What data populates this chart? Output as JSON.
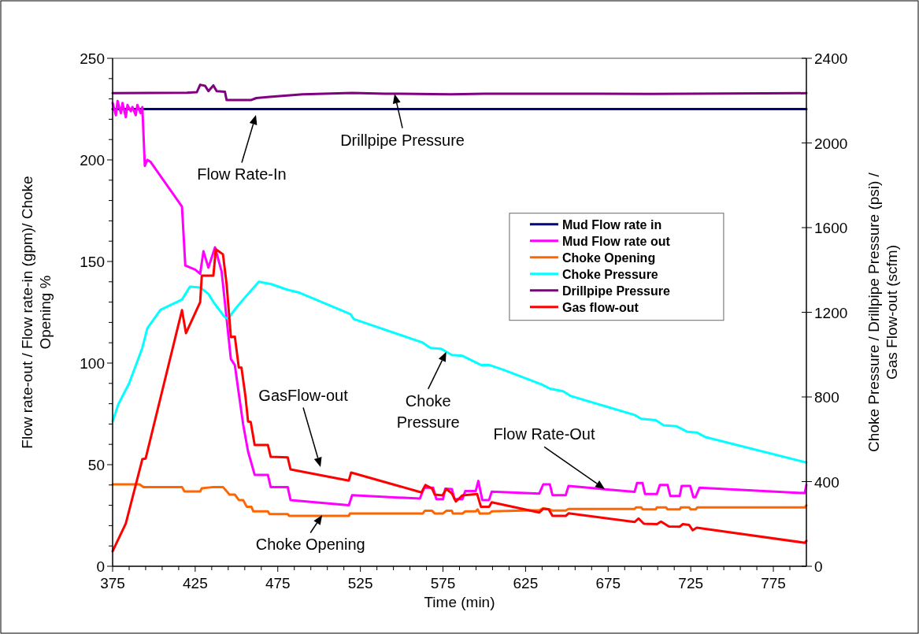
{
  "chart_data": {
    "type": "line",
    "xlabel": "Time (min)",
    "ylabel": "Flow rate-out / Flow rate-in (gpm)/ Choke Opening %",
    "y2label": "Choke Pressure / Drillpipe Pressure (psi) / Gas Flow-out (scfm)",
    "xlim": [
      375,
      795
    ],
    "xticks": [
      375,
      {
        "value": 385,
        "label": null
      },
      {
        "value": 395,
        "label": null
      },
      {
        "value": 405,
        "label": null
      },
      {
        "value": 415,
        "label": null
      },
      425,
      {
        "value": 435,
        "label": null
      },
      {
        "value": 445,
        "label": null
      },
      {
        "value": 455,
        "label": null
      },
      {
        "value": 465,
        "label": null
      },
      475,
      {
        "value": 485,
        "label": null
      },
      {
        "value": 495,
        "label": null
      },
      {
        "value": 505,
        "label": null
      },
      {
        "value": 515,
        "label": null
      },
      525,
      {
        "value": 535,
        "label": null
      },
      {
        "value": 545,
        "label": null
      },
      {
        "value": 555,
        "label": null
      },
      {
        "value": 565,
        "label": null
      },
      575,
      {
        "value": 585,
        "label": null
      },
      {
        "value": 595,
        "label": null
      },
      {
        "value": 605,
        "label": null
      },
      {
        "value": 615,
        "label": null
      },
      625,
      {
        "value": 635,
        "label": null
      },
      {
        "value": 645,
        "label": null
      },
      {
        "value": 655,
        "label": null
      },
      {
        "value": 665,
        "label": null
      },
      675,
      {
        "value": 685,
        "label": null
      },
      {
        "value": 695,
        "label": null
      },
      {
        "value": 705,
        "label": null
      },
      {
        "value": 715,
        "label": null
      },
      725,
      {
        "value": 735,
        "label": null
      },
      {
        "value": 745,
        "label": null
      },
      {
        "value": 755,
        "label": null
      },
      {
        "value": 765,
        "label": null
      },
      775,
      {
        "value": 785,
        "label": null
      }
    ],
    "ylim": [
      0,
      250
    ],
    "yticks": [
      0,
      {
        "value": 10,
        "label": null
      },
      {
        "value": 20,
        "label": null
      },
      {
        "value": 30,
        "label": null
      },
      {
        "value": 40,
        "label": null
      },
      50,
      {
        "value": 60,
        "label": null
      },
      {
        "value": 70,
        "label": null
      },
      {
        "value": 80,
        "label": null
      },
      {
        "value": 90,
        "label": null
      },
      100,
      {
        "value": 110,
        "label": null
      },
      {
        "value": 120,
        "label": null
      },
      {
        "value": 130,
        "label": null
      },
      {
        "value": 140,
        "label": null
      },
      150,
      {
        "value": 160,
        "label": null
      },
      {
        "value": 170,
        "label": null
      },
      {
        "value": 180,
        "label": null
      },
      {
        "value": 190,
        "label": null
      },
      200,
      {
        "value": 210,
        "label": null
      },
      {
        "value": 220,
        "label": null
      },
      {
        "value": 230,
        "label": null
      },
      {
        "value": 240,
        "label": null
      },
      250
    ],
    "y2lim": [
      0,
      2400
    ],
    "y2ticks": [
      0,
      400,
      800,
      1200,
      1600,
      2000,
      2400
    ],
    "grid": false,
    "legend": "right",
    "marker": "none",
    "line_style": "solid",
    "series": [
      {
        "name": "Mud Flow rate in",
        "color": "#000080",
        "x": [
          375,
          795
        ],
        "values": [
          225,
          225
        ]
      },
      {
        "name": "Mud Flow rate out",
        "color": "#ff00ff",
        "x": [
          375,
          377,
          378,
          380,
          381,
          383,
          384,
          386,
          387,
          389,
          390,
          392,
          393,
          394.5,
          396,
          398,
          417,
          419,
          425,
          428,
          430,
          433,
          437,
          441,
          446.6,
          449,
          451.4,
          454,
          457,
          461,
          469,
          470.7,
          481,
          482.7,
          518,
          520,
          561,
          563.6,
          569,
          571,
          575,
          576.4,
          580.4,
          582,
          586.7,
          588.5,
          594.8,
          596.4,
          598.8,
          602.9,
          604.5,
          633.3,
          635.7,
          639.7,
          641.3,
          649.3,
          651,
          691,
          692.5,
          695.8,
          697.3,
          704.5,
          706.3,
          711,
          712.6,
          718.3,
          719.5,
          724.7,
          726.6,
          727.9,
          730.3,
          794,
          795
        ],
        "values": [
          228,
          222,
          229,
          223,
          228,
          221,
          227,
          224,
          226,
          222,
          227,
          223,
          226,
          197,
          200,
          199,
          177,
          148,
          146,
          144,
          155,
          147,
          157,
          145,
          102,
          99,
          85,
          70,
          56.5,
          45,
          45,
          39,
          39,
          32.6,
          30,
          35,
          33.3,
          38.7,
          38.7,
          33,
          33,
          38.2,
          38,
          33,
          33,
          37,
          37,
          42,
          32.6,
          32.6,
          36.7,
          35.8,
          40.3,
          40.3,
          35,
          35,
          39.5,
          36.6,
          41,
          41,
          35.6,
          35.6,
          40,
          40,
          34.6,
          34.6,
          39.5,
          39.5,
          34,
          34,
          38.7,
          36,
          40
        ]
      },
      {
        "name": "Choke Opening",
        "color": "#ff6600",
        "x": [
          375,
          391.3,
          393.7,
          417,
          418.5,
          428,
          429,
          436,
          441.8,
          445.8,
          449,
          451.4,
          454,
          456.2,
          459,
          460.2,
          469,
          470,
          481,
          481.9,
          518,
          518.7,
          562.8,
          564,
          568.4,
          570,
          575,
          577,
          580.4,
          581,
          586.8,
          588.5,
          594.8,
          596,
          597.2,
          603,
          604.5,
          633.3,
          635.7,
          639.7,
          641.3,
          649.3,
          651,
          691,
          692,
          695,
          696,
          703.8,
          704.5,
          710,
          711,
          718.3,
          719,
          724,
          725,
          728,
          729,
          794,
          795
        ],
        "values": [
          40.3,
          40.3,
          39,
          39,
          36.8,
          36.8,
          38.4,
          39,
          39,
          35.3,
          35.3,
          32.6,
          32.6,
          29.3,
          29.3,
          27,
          27,
          25.7,
          25.7,
          24.8,
          24.8,
          26,
          26,
          27.3,
          27.3,
          26,
          26,
          27.3,
          27.3,
          26,
          26,
          27,
          27,
          28,
          26,
          26,
          27,
          27.6,
          28.5,
          28,
          27.4,
          27.4,
          28.2,
          28.2,
          29,
          29,
          28,
          28,
          29,
          29,
          28,
          28,
          29,
          29,
          28,
          28,
          29,
          29,
          30
        ]
      },
      {
        "name": "Choke Pressure",
        "color": "#00ffff",
        "axis": "y2",
        "x": [
          375,
          378.5,
          385,
          393,
          396,
          404,
          417,
          421.8,
          428,
          433,
          436,
          439.4,
          443,
          445,
          449,
          454,
          463.5,
          471,
          481,
          487.5,
          519,
          521,
          562.6,
          567.4,
          574,
          580.4,
          586.8,
          598,
          603,
          612,
          635,
          639.7,
          647.7,
          652.5,
          691,
          695,
          703.8,
          708.6,
          716.6,
          723,
          728.7,
          734,
          795
        ],
        "values": [
          685,
          766,
          864,
          1032,
          1124,
          1212,
          1260,
          1321,
          1317,
          1287,
          1249,
          1213,
          1176,
          1170,
          1213,
          1260,
          1344,
          1333,
          1306,
          1294,
          1191,
          1168,
          1057,
          1032,
          1027,
          998,
          994,
          951,
          951,
          927,
          858,
          839,
          827,
          804,
          715,
          697,
          690,
          666,
          661,
          635,
          632,
          610,
          490
        ]
      },
      {
        "name": "Drillpipe Pressure",
        "color": "#800080",
        "axis": "y2",
        "x": [
          375,
          420,
          426,
          428,
          431,
          433,
          436,
          438,
          443,
          444,
          459,
          462,
          470,
          490,
          520,
          540,
          580,
          600,
          640,
          700,
          795
        ],
        "values": [
          2235,
          2237,
          2240,
          2275,
          2270,
          2245,
          2272,
          2245,
          2242,
          2203,
          2203,
          2212,
          2218,
          2230,
          2236,
          2233,
          2230,
          2233,
          2233,
          2232,
          2235
        ]
      },
      {
        "name": "Gas flow-out",
        "color": "#ff0000",
        "axis": "y2",
        "x": [
          375,
          383,
          393,
          395,
          417,
          419.4,
          428,
          429,
          436,
          437.5,
          441.8,
          444,
          446.6,
          449,
          451.4,
          453,
          455.4,
          457,
          458.6,
          461,
          469,
          470.7,
          481,
          482.7,
          518,
          519.4,
          562,
          564.4,
          568.4,
          570,
          574.7,
          577,
          580.4,
          582.8,
          586.8,
          595.7,
          598,
          602.9,
          604.5,
          633.3,
          635.7,
          639,
          641.3,
          649.3,
          651,
          691,
          693.4,
          696.6,
          704.5,
          707,
          711.8,
          718.3,
          720.2,
          724,
          726.2,
          728.6,
          794,
          795
        ],
        "values": [
          71,
          202,
          506,
          509,
          1210,
          1101,
          1248,
          1373,
          1373,
          1498,
          1474,
          1334,
          1083,
          1085,
          939,
          939,
          804,
          684,
          682,
          573,
          573,
          517,
          514,
          458,
          405,
          443,
          349,
          384,
          367,
          339,
          335,
          365,
          344,
          306,
          335,
          341,
          281,
          281,
          302,
          254,
          272,
          269,
          238,
          238,
          250,
          209,
          226,
          201,
          199,
          211,
          188,
          187,
          199,
          195,
          170,
          182,
          111,
          120
        ]
      }
    ],
    "annotations": [
      "Flow Rate-In",
      {
        "text": "Drillpipe Pressure",
        "x": 545.7,
        "y": 232.5
      },
      "GasFlow-out",
      {
        "text": "Choke Pressure",
        "x": 577,
        "y": 105.5
      },
      {
        "text": "Flow Rate-Out",
        "x": 673,
        "y": 38
      },
      {
        "text": "Choke Opening",
        "x": 501.9,
        "y": 25.2
      }
    ]
  }
}
